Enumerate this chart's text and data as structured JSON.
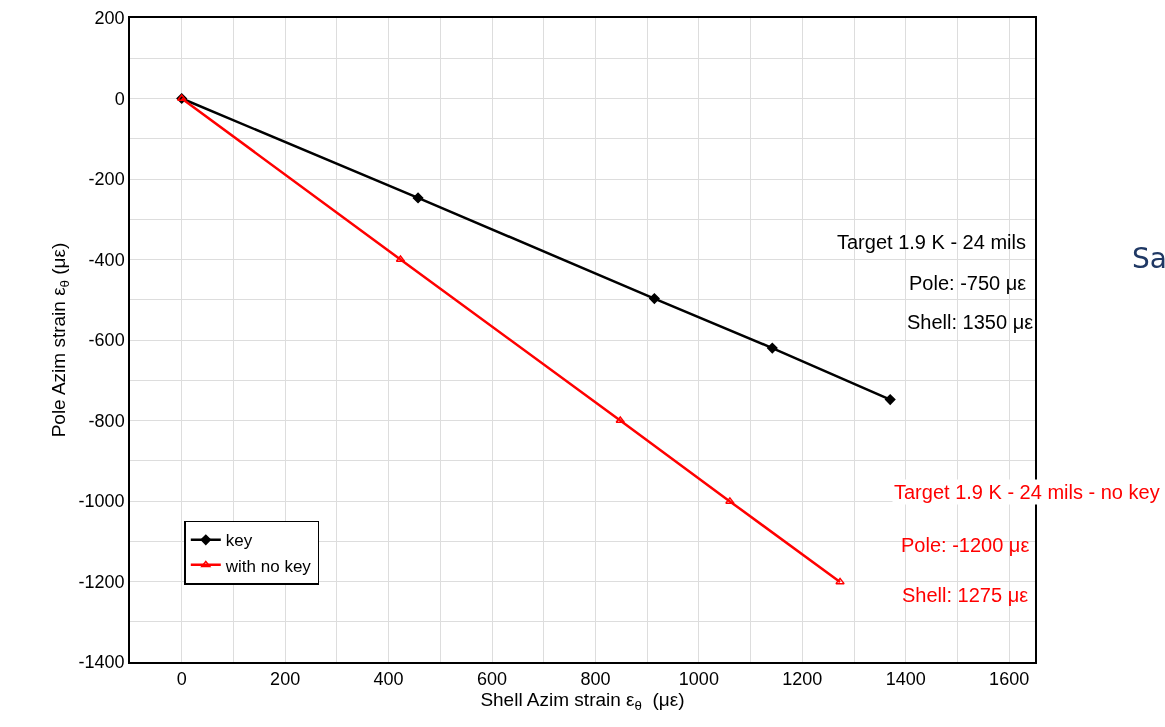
{
  "chart_data": {
    "type": "line",
    "xlabel": "Shell Azim strain ε$_{θ}$  (με)",
    "ylabel": "Pole Azim strain ε$_{θ}$ (με)",
    "series": [
      {
        "name": "key",
        "color": "#000000",
        "marker": "diamond",
        "x": [
          0,
          457,
          914,
          1142,
          1370
        ],
        "values": [
          0,
          -247,
          -497,
          -620,
          -748
        ]
      },
      {
        "name": "with no key",
        "color": "#ff0000",
        "marker": "triangle",
        "x": [
          0,
          423,
          848,
          1060,
          1273
        ],
        "values": [
          0,
          -400,
          -800,
          -1001,
          -1201
        ]
      }
    ],
    "xlim": [
      -100,
      1650
    ],
    "ylim": [
      -1400,
      200
    ],
    "xticks": [
      0,
      {
        "value": 100,
        "label": null
      },
      200,
      {
        "value": 300,
        "label": null
      },
      400,
      {
        "value": 500,
        "label": null
      },
      600,
      {
        "value": 700,
        "label": null
      },
      800,
      {
        "value": 900,
        "label": null
      },
      1000,
      {
        "value": 1100,
        "label": null
      },
      1200,
      {
        "value": 1300,
        "label": null
      },
      1400,
      {
        "value": 1500,
        "label": null
      },
      1600
    ],
    "yticks": [
      -1400,
      {
        "value": -1300,
        "label": null
      },
      -1200,
      {
        "value": -1100,
        "label": null
      },
      -1000,
      {
        "value": -900,
        "label": null
      },
      -800,
      {
        "value": -700,
        "label": null
      },
      -600,
      {
        "value": -500,
        "label": null
      },
      -400,
      {
        "value": -300,
        "label": null
      },
      -200,
      {
        "value": -100,
        "label": null
      },
      0,
      {
        "value": 100,
        "label": null
      },
      200
    ],
    "grid": true,
    "legend": "bottom left",
    "line_style": "solid",
    "annotations": [
      "Target 1.9 K - 24 mils",
      "Pole: -750 με",
      "Shell: 1350 με",
      "Target 1.9 K - 24 mils - no key",
      "Pole: -1200 με",
      "Shell: 1275 με",
      "Sa"
    ]
  }
}
